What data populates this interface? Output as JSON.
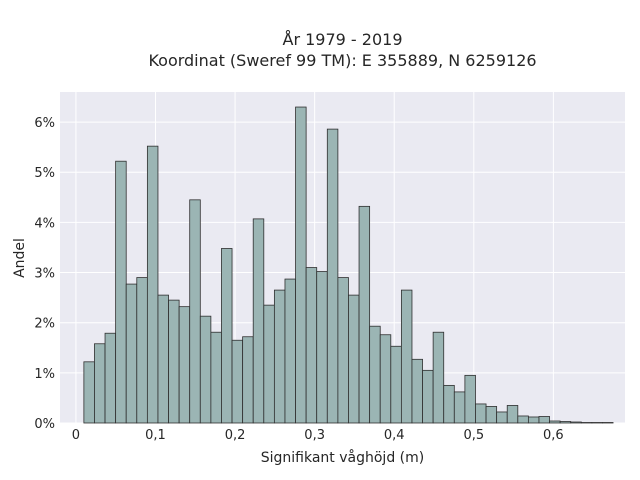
{
  "chart_data": {
    "type": "bar",
    "title": "År 1979 - 2019",
    "subtitle": "Koordinat (Sweref 99 TM): E 355889, N 6259126",
    "xlabel": "Signifikant våghöjd (m)",
    "ylabel": "Andel",
    "xlim": [
      -0.02,
      0.69
    ],
    "ylim": [
      0,
      6.6
    ],
    "x_ticks": [
      0,
      0.1,
      0.2,
      0.3,
      0.4,
      0.5,
      0.6
    ],
    "x_tick_labels": [
      "0",
      "0,1",
      "0,2",
      "0,3",
      "0,4",
      "0,5",
      "0,6"
    ],
    "y_ticks": [
      0,
      1,
      2,
      3,
      4,
      5,
      6
    ],
    "y_tick_labels": [
      "0%",
      "1%",
      "2%",
      "3%",
      "4%",
      "5%",
      "6%"
    ],
    "grid": true,
    "bar_color": "#9bb5b4",
    "edge_color": "#2f2f2f",
    "background_color": "#eaeaf2",
    "bin_start": 0.01,
    "bin_width": 0.0133,
    "values": [
      1.22,
      1.58,
      1.79,
      5.22,
      2.77,
      2.9,
      5.52,
      2.55,
      2.45,
      2.32,
      4.45,
      2.13,
      1.81,
      3.48,
      1.65,
      1.72,
      4.07,
      2.35,
      2.65,
      2.87,
      6.3,
      3.1,
      3.02,
      5.86,
      2.9,
      2.55,
      4.32,
      1.93,
      1.76,
      1.53,
      2.65,
      1.27,
      1.05,
      1.81,
      0.75,
      0.62,
      0.95,
      0.38,
      0.33,
      0.22,
      0.35,
      0.14,
      0.12,
      0.13,
      0.04,
      0.03,
      0.02,
      0.01,
      0.01,
      0.01
    ]
  }
}
